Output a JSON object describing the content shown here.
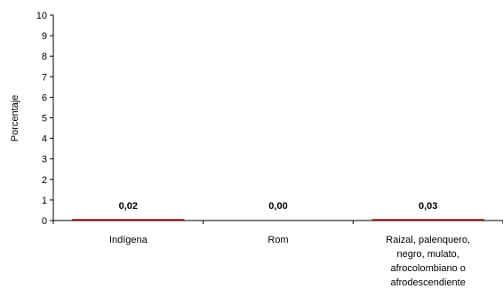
{
  "chart_data": {
    "type": "bar",
    "categories": [
      [
        "Indígena"
      ],
      [
        "Rom"
      ],
      [
        "Raizal, palenquero,",
        "negro, mulato,",
        "afrocolombiano o",
        "afrodescendiente"
      ]
    ],
    "values": [
      0.02,
      0.0,
      0.03
    ],
    "data_labels": [
      "0,02",
      "0,00",
      "0,03"
    ],
    "title": "",
    "xlabel": "",
    "ylabel": "Porcentaje",
    "ylim": [
      0,
      10
    ],
    "yticks": [
      0,
      1,
      2,
      3,
      4,
      5,
      6,
      7,
      8,
      9,
      10
    ],
    "grid": false,
    "legend": "none",
    "colors": {
      "bar": "#8B0000",
      "axis": "#000000"
    }
  }
}
